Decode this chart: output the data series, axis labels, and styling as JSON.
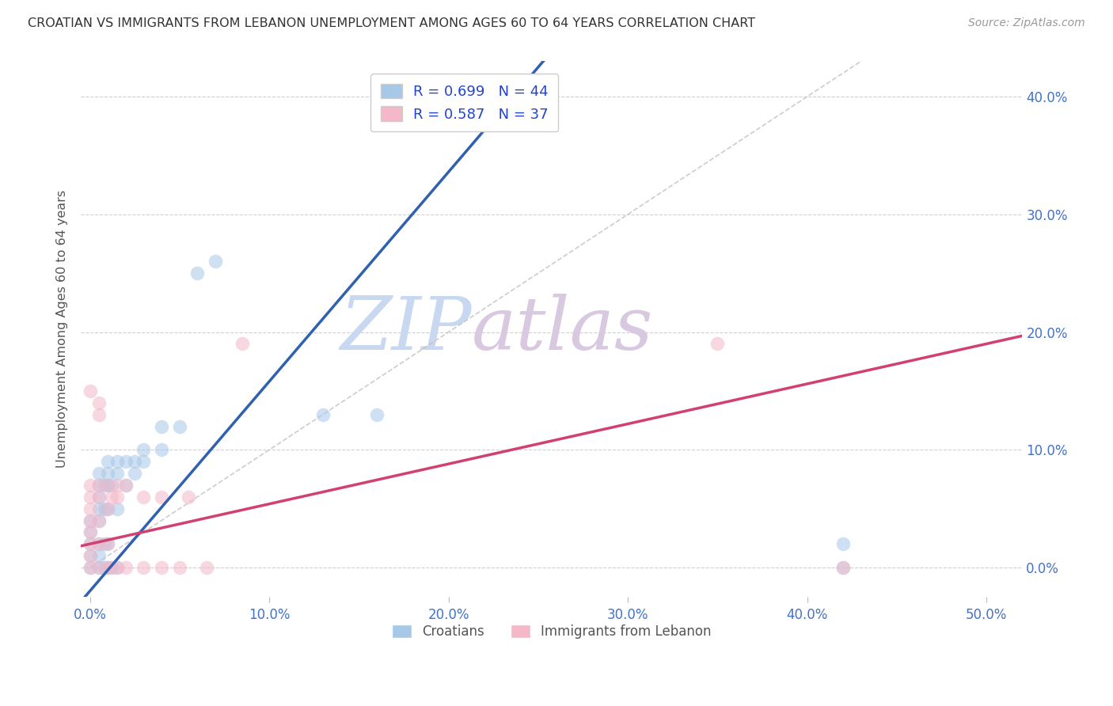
{
  "title": "CROATIAN VS IMMIGRANTS FROM LEBANON UNEMPLOYMENT AMONG AGES 60 TO 64 YEARS CORRELATION CHART",
  "source": "Source: ZipAtlas.com",
  "xlabel_ticks": [
    "0.0%",
    "10.0%",
    "20.0%",
    "30.0%",
    "40.0%",
    "50.0%"
  ],
  "xlabel_vals": [
    0.0,
    0.1,
    0.2,
    0.3,
    0.4,
    0.5
  ],
  "ylabel_ticks": [
    "0.0%",
    "10.0%",
    "20.0%",
    "30.0%",
    "40.0%"
  ],
  "ylabel_vals": [
    0.0,
    0.1,
    0.2,
    0.3,
    0.4
  ],
  "ylabel_label": "Unemployment Among Ages 60 to 64 years",
  "legend_labels": [
    "Croatians",
    "Immigrants from Lebanon"
  ],
  "R_croatian": 0.699,
  "N_croatian": 44,
  "R_lebanon": 0.587,
  "N_lebanon": 37,
  "croatian_color": "#a8c8e8",
  "lebanon_color": "#f4b8c8",
  "croatian_line_color": "#3060b0",
  "lebanon_line_color": "#d04070",
  "diagonal_color": "#c0c0c0",
  "watermark_zip_color": "#c8d8f0",
  "watermark_atlas_color": "#d8c8e0",
  "xlim": [
    -0.005,
    0.52
  ],
  "ylim": [
    -0.025,
    0.43
  ],
  "croatian_scatter": [
    [
      0.0,
      0.0
    ],
    [
      0.0,
      0.01
    ],
    [
      0.0,
      0.02
    ],
    [
      0.0,
      0.03
    ],
    [
      0.0,
      0.04
    ],
    [
      0.005,
      0.0
    ],
    [
      0.005,
      0.01
    ],
    [
      0.005,
      0.02
    ],
    [
      0.005,
      0.04
    ],
    [
      0.005,
      0.05
    ],
    [
      0.005,
      0.06
    ],
    [
      0.005,
      0.07
    ],
    [
      0.005,
      0.08
    ],
    [
      0.008,
      0.0
    ],
    [
      0.008,
      0.02
    ],
    [
      0.008,
      0.05
    ],
    [
      0.008,
      0.07
    ],
    [
      0.01,
      0.0
    ],
    [
      0.01,
      0.02
    ],
    [
      0.01,
      0.05
    ],
    [
      0.01,
      0.07
    ],
    [
      0.01,
      0.08
    ],
    [
      0.01,
      0.09
    ],
    [
      0.012,
      0.0
    ],
    [
      0.012,
      0.07
    ],
    [
      0.015,
      0.0
    ],
    [
      0.015,
      0.05
    ],
    [
      0.015,
      0.08
    ],
    [
      0.015,
      0.09
    ],
    [
      0.02,
      0.07
    ],
    [
      0.02,
      0.09
    ],
    [
      0.025,
      0.08
    ],
    [
      0.025,
      0.09
    ],
    [
      0.03,
      0.09
    ],
    [
      0.03,
      0.1
    ],
    [
      0.04,
      0.1
    ],
    [
      0.04,
      0.12
    ],
    [
      0.05,
      0.12
    ],
    [
      0.06,
      0.25
    ],
    [
      0.07,
      0.26
    ],
    [
      0.13,
      0.13
    ],
    [
      0.16,
      0.13
    ],
    [
      0.42,
      0.0
    ],
    [
      0.42,
      0.02
    ]
  ],
  "lebanon_scatter": [
    [
      0.0,
      0.0
    ],
    [
      0.0,
      0.01
    ],
    [
      0.0,
      0.02
    ],
    [
      0.0,
      0.03
    ],
    [
      0.0,
      0.04
    ],
    [
      0.0,
      0.05
    ],
    [
      0.0,
      0.06
    ],
    [
      0.0,
      0.07
    ],
    [
      0.0,
      0.15
    ],
    [
      0.005,
      0.0
    ],
    [
      0.005,
      0.02
    ],
    [
      0.005,
      0.04
    ],
    [
      0.005,
      0.06
    ],
    [
      0.005,
      0.07
    ],
    [
      0.005,
      0.13
    ],
    [
      0.005,
      0.14
    ],
    [
      0.01,
      0.0
    ],
    [
      0.01,
      0.02
    ],
    [
      0.01,
      0.05
    ],
    [
      0.01,
      0.07
    ],
    [
      0.012,
      0.0
    ],
    [
      0.012,
      0.06
    ],
    [
      0.015,
      0.0
    ],
    [
      0.015,
      0.06
    ],
    [
      0.015,
      0.07
    ],
    [
      0.02,
      0.0
    ],
    [
      0.02,
      0.07
    ],
    [
      0.03,
      0.0
    ],
    [
      0.03,
      0.06
    ],
    [
      0.04,
      0.0
    ],
    [
      0.04,
      0.06
    ],
    [
      0.05,
      0.0
    ],
    [
      0.055,
      0.06
    ],
    [
      0.065,
      0.0
    ],
    [
      0.085,
      0.19
    ],
    [
      0.35,
      0.19
    ],
    [
      0.42,
      0.0
    ]
  ]
}
